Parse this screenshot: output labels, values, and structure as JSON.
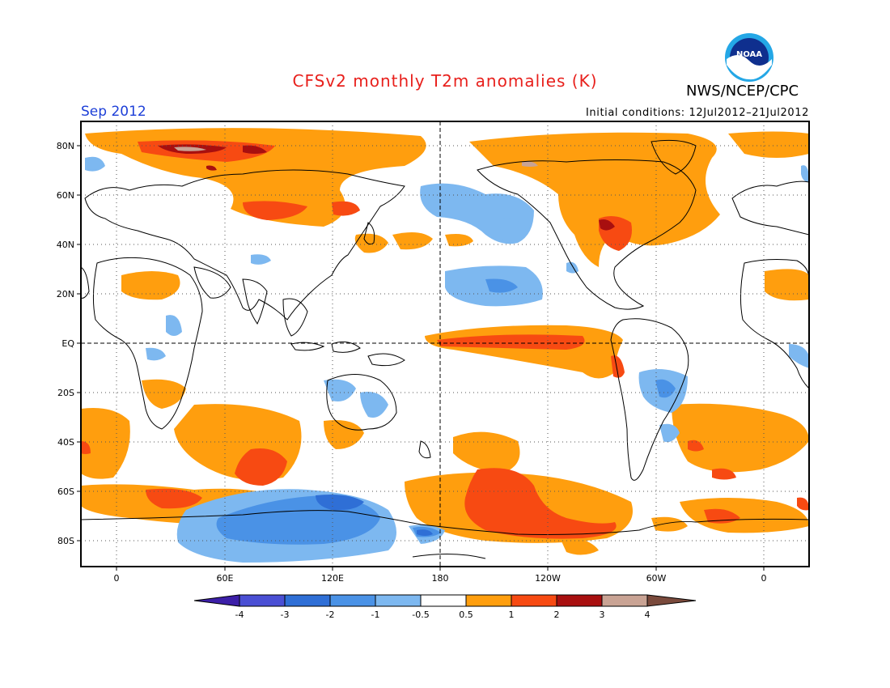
{
  "title": "CFSv2 monthly T2m anomalies (K)",
  "organization": "NWS/NCEP/CPC",
  "logo_text": "NOAA",
  "valid_month": "Sep 2012",
  "initial_conditions": "Initial conditions: 12Jul2012–21Jul2012",
  "colors": {
    "title": "#e8201c",
    "month": "#1d3fd8",
    "axis": "#000000"
  },
  "lat_labels": [
    "80N",
    "60N",
    "40N",
    "20N",
    "EQ",
    "20S",
    "40S",
    "60S",
    "80S"
  ],
  "lon_labels": [
    "0",
    "60E",
    "120E",
    "180",
    "120W",
    "60W",
    "0"
  ],
  "colorbar": {
    "labels": [
      "-4",
      "-3",
      "-2",
      "-1",
      "-0.5",
      "0.5",
      "1",
      "2",
      "3",
      "4"
    ],
    "colors": [
      "#3c1fa8",
      "#4a4fd4",
      "#2f6fd6",
      "#4a92e6",
      "#7db8f0",
      "#ffffff",
      "#ff9e0e",
      "#f74a12",
      "#a80f0f",
      "#c9a394",
      "#7a4a3c"
    ]
  },
  "anomaly_regions": [
    {
      "name": "siberia-arctic-warm",
      "level": "1"
    },
    {
      "name": "north-pacific-cool",
      "level": "-0.5"
    },
    {
      "name": "equatorial-pacific-warm",
      "level": "2"
    },
    {
      "name": "south-pacific-warm",
      "level": "2"
    },
    {
      "name": "antarctic-ross-cool",
      "level": "-1"
    },
    {
      "name": "north-america-warm",
      "level": "1"
    }
  ]
}
